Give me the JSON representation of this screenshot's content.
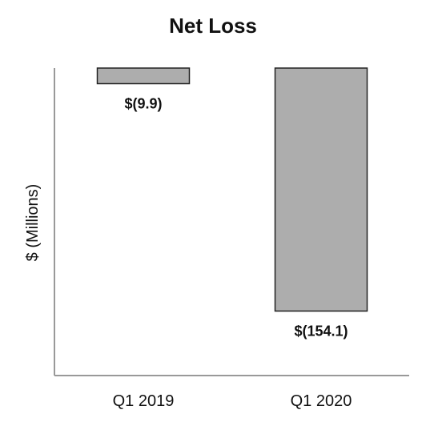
{
  "chart_data": {
    "type": "bar",
    "title": "Net Loss",
    "xlabel": "",
    "ylabel": "$ (Millions)",
    "categories": [
      "Q1 2019",
      "Q1 2020"
    ],
    "values": [
      -9.9,
      -154.1
    ],
    "data_labels": [
      "$(9.9)",
      "$(154.1)"
    ],
    "ylim": [
      -195,
      0
    ],
    "grid": false,
    "legend": "none",
    "colors": {
      "bar_fill": "#adadad",
      "bar_stroke": "#222222",
      "axis": "#999999"
    }
  }
}
